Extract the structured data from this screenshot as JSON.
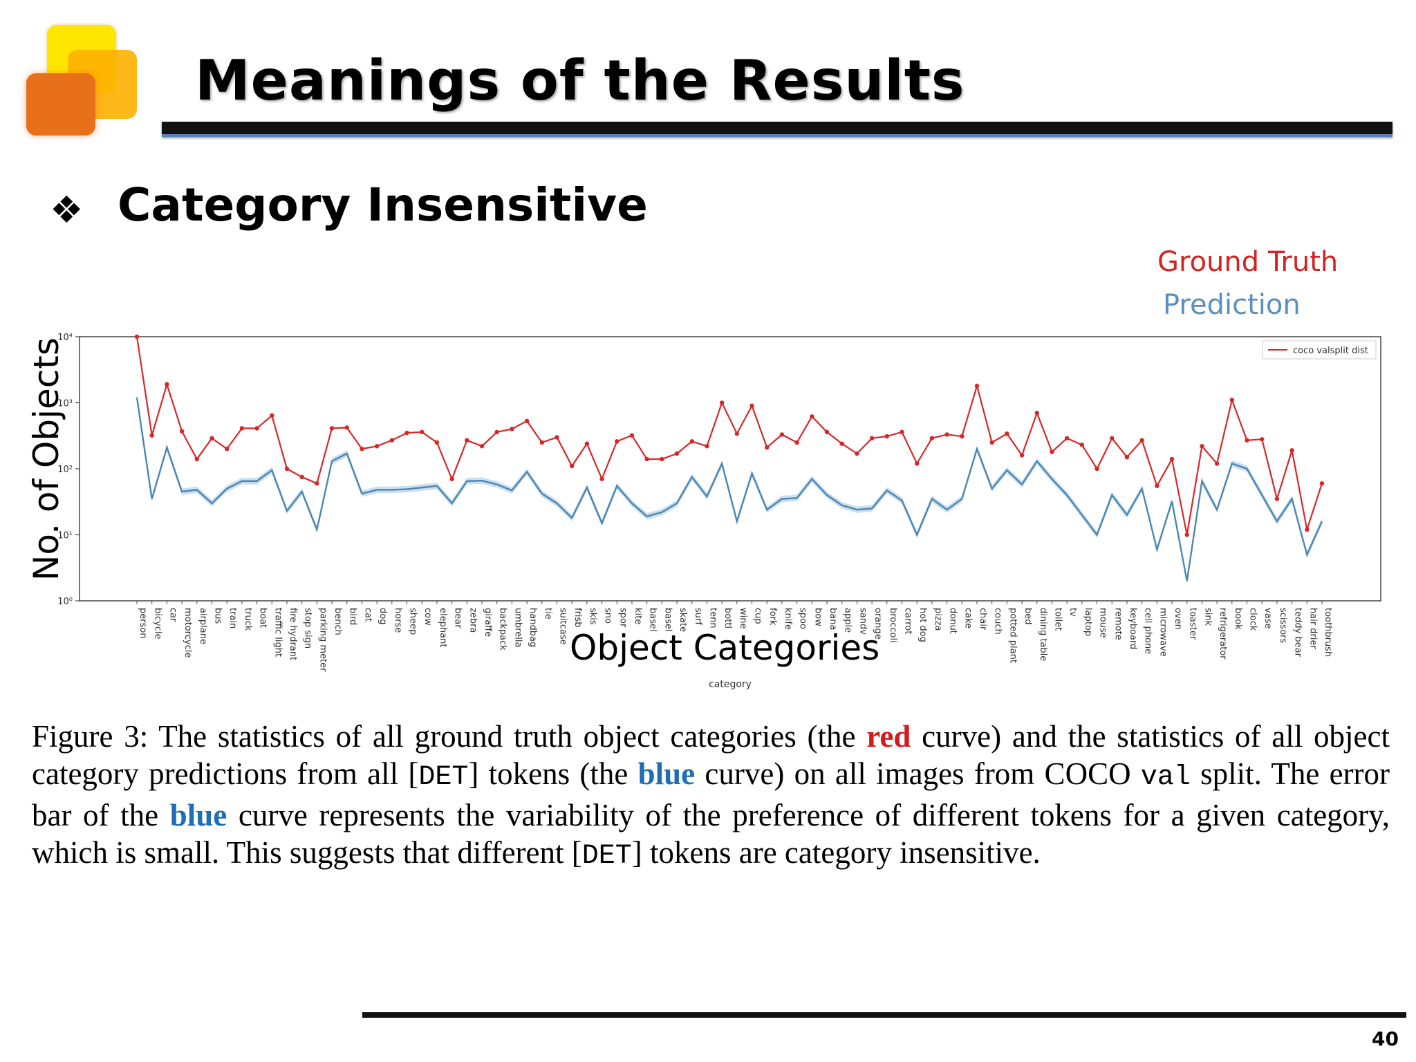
{
  "title": "Meanings of the Results",
  "bullet": {
    "icon": "❖",
    "text": "Category Insensitive"
  },
  "legend_labels": {
    "ground_truth": "Ground Truth",
    "prediction": "Prediction"
  },
  "big_axis_labels": {
    "y": "No. of Objects",
    "x": "Object Categories"
  },
  "caption": {
    "p1": "Figure 3: The statistics of all ground truth object categories (the ",
    "red": "red",
    "p2": " curve) and the statistics of all object category predictions from all [",
    "det1": "DET",
    "p3": "] tokens (the ",
    "blue1": "blue",
    "p4": " curve) on all images from COCO ",
    "val": "val",
    "p5": " split. The error bar of the ",
    "blue2": "blue",
    "p6": " curve represents the variability of the preference of different tokens for a given category, which is small. This suggests that different [",
    "det2": "DET",
    "p7": "] tokens are category insensitive."
  },
  "page_number": "40",
  "colors": {
    "red": "#d62728",
    "blue": "#4a86b4",
    "band": "#a9c8e3"
  },
  "chart_data": {
    "type": "line",
    "scale": "log",
    "xlabel": "category",
    "ylabel": "",
    "ylim": [
      1,
      10000
    ],
    "yticks": [
      {
        "value": 1,
        "label": "10⁰"
      },
      {
        "value": 10,
        "label": "10¹"
      },
      {
        "value": 100,
        "label": "10²"
      },
      {
        "value": 1000,
        "label": "10³"
      },
      {
        "value": 10000,
        "label": "10⁴"
      }
    ],
    "legend": {
      "label": "coco valsplit dist",
      "position": "top-right"
    },
    "categories": [
      "person",
      "bicycle",
      "car",
      "motorcycle",
      "airplane",
      "bus",
      "train",
      "truck",
      "boat",
      "traffic light",
      "fire hydrant",
      "stop sign",
      "parking meter",
      "bench",
      "bird",
      "cat",
      "dog",
      "horse",
      "sheep",
      "cow",
      "elephant",
      "bear",
      "zebra",
      "giraffe",
      "backpack",
      "umbrella",
      "handbag",
      "tie",
      "suitcase",
      "frisbee",
      "skis",
      "snowboard",
      "sports ball",
      "kite",
      "baseball bat",
      "baseball glove",
      "skateboard",
      "surfboard",
      "tennis racket",
      "bottle",
      "wine glass",
      "cup",
      "fork",
      "knife",
      "spoon",
      "bowl",
      "banana",
      "apple",
      "sandwich",
      "orange",
      "broccoli",
      "carrot",
      "hot dog",
      "pizza",
      "donut",
      "cake",
      "chair",
      "couch",
      "potted plant",
      "bed",
      "dining table",
      "toilet",
      "tv",
      "laptop",
      "mouse",
      "remote",
      "keyboard",
      "cell phone",
      "microwave",
      "oven",
      "toaster",
      "sink",
      "refrigerator",
      "book",
      "clock",
      "vase",
      "scissors",
      "teddy bear",
      "hair drier",
      "toothbrush"
    ],
    "tick_labels": [
      "person",
      "bicycle",
      "car",
      "motorcycle",
      "airplane",
      "bus",
      "train",
      "truck",
      "boat",
      "traffic light",
      "fire hydrant",
      "stop sign",
      "parking meter",
      "bench",
      "bird",
      "cat",
      "dog",
      "horse",
      "sheep",
      "cow",
      "elephant",
      "bear",
      "zebra",
      "giraffe",
      "backpack",
      "umbrella",
      "handbag",
      "tie",
      "suitcase",
      "frisb",
      "skis",
      "sno",
      "spor",
      "kite",
      "basel",
      "basel",
      "skate",
      "surf",
      "tenn",
      "bottl",
      "wine",
      "cup",
      "fork",
      "knife",
      "spoo",
      "bow",
      "bana",
      "apple",
      "sandv",
      "orange",
      "broccoli",
      "carrot",
      "hot dog",
      "pizza",
      "donut",
      "cake",
      "chair",
      "couch",
      "potted plant",
      "bed",
      "dining table",
      "toilet",
      "tv",
      "laptop",
      "mouse",
      "remote",
      "keyboard",
      "cell phone",
      "microwave",
      "oven",
      "toaster",
      "sink",
      "refrigerator",
      "book",
      "clock",
      "vase",
      "scissors",
      "teddy bear",
      "hair drier",
      "toothbrush"
    ],
    "series": [
      {
        "name": "Ground Truth",
        "values": [
          10000,
          320,
          1900,
          370,
          140,
          290,
          200,
          410,
          410,
          640,
          100,
          75,
          60,
          410,
          420,
          200,
          220,
          270,
          350,
          360,
          250,
          70,
          270,
          220,
          360,
          400,
          530,
          250,
          300,
          110,
          240,
          70,
          260,
          320,
          140,
          140,
          170,
          260,
          220,
          1000,
          340,
          900,
          210,
          330,
          250,
          620,
          360,
          240,
          170,
          290,
          310,
          360,
          120,
          290,
          330,
          310,
          1800,
          250,
          340,
          160,
          700,
          180,
          290,
          230,
          100,
          290,
          150,
          270,
          55,
          140,
          10,
          220,
          120,
          1100,
          270,
          280,
          35,
          190,
          12,
          60
        ]
      },
      {
        "name": "Prediction",
        "values": [
          1200,
          35,
          210,
          45,
          48,
          30,
          50,
          65,
          65,
          95,
          23,
          45,
          12,
          130,
          170,
          42,
          48,
          48,
          49,
          52,
          55,
          30,
          65,
          66,
          58,
          47,
          90,
          42,
          30,
          18,
          52,
          15,
          55,
          30,
          19,
          22,
          30,
          75,
          38,
          120,
          16,
          85,
          24,
          35,
          36,
          70,
          40,
          28,
          24,
          25,
          47,
          33,
          10,
          35,
          24,
          35,
          200,
          50,
          95,
          58,
          130,
          70,
          40,
          20,
          10,
          40,
          20,
          50,
          6,
          32,
          2,
          65,
          24,
          120,
          100,
          40,
          16,
          35,
          5,
          16
        ],
        "band_spread": 0.12
      }
    ]
  }
}
